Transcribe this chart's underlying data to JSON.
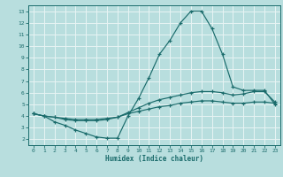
{
  "title": "",
  "xlabel": "Humidex (Indice chaleur)",
  "xlim": [
    -0.5,
    23.5
  ],
  "ylim": [
    1.5,
    13.5
  ],
  "xticks": [
    0,
    1,
    2,
    3,
    4,
    5,
    6,
    7,
    8,
    9,
    10,
    11,
    12,
    13,
    14,
    15,
    16,
    17,
    18,
    19,
    20,
    21,
    22,
    23
  ],
  "yticks": [
    2,
    3,
    4,
    5,
    6,
    7,
    8,
    9,
    10,
    11,
    12,
    13
  ],
  "bg_color": "#b8dede",
  "grid_color": "#e8f4f4",
  "line_color": "#1a6b6b",
  "x": [
    0,
    1,
    2,
    3,
    4,
    5,
    6,
    7,
    8,
    9,
    10,
    11,
    12,
    13,
    14,
    15,
    16,
    17,
    18,
    19,
    20,
    21,
    22,
    23
  ],
  "y_max": [
    4.2,
    4.0,
    3.5,
    3.2,
    2.8,
    2.5,
    2.2,
    2.1,
    2.1,
    4.0,
    5.5,
    7.3,
    9.3,
    10.5,
    12.0,
    13.0,
    13.0,
    11.5,
    9.3,
    6.5,
    6.2,
    6.2,
    6.2,
    5.0
  ],
  "y_mean": [
    4.2,
    4.0,
    3.9,
    3.7,
    3.6,
    3.6,
    3.6,
    3.7,
    3.9,
    4.3,
    4.7,
    5.1,
    5.4,
    5.6,
    5.8,
    6.0,
    6.1,
    6.1,
    6.0,
    5.8,
    5.9,
    6.1,
    6.1,
    5.2
  ],
  "y_min": [
    4.2,
    4.0,
    3.9,
    3.8,
    3.7,
    3.7,
    3.7,
    3.8,
    3.9,
    4.2,
    4.4,
    4.6,
    4.8,
    4.9,
    5.1,
    5.2,
    5.3,
    5.3,
    5.2,
    5.1,
    5.1,
    5.2,
    5.2,
    5.1
  ]
}
